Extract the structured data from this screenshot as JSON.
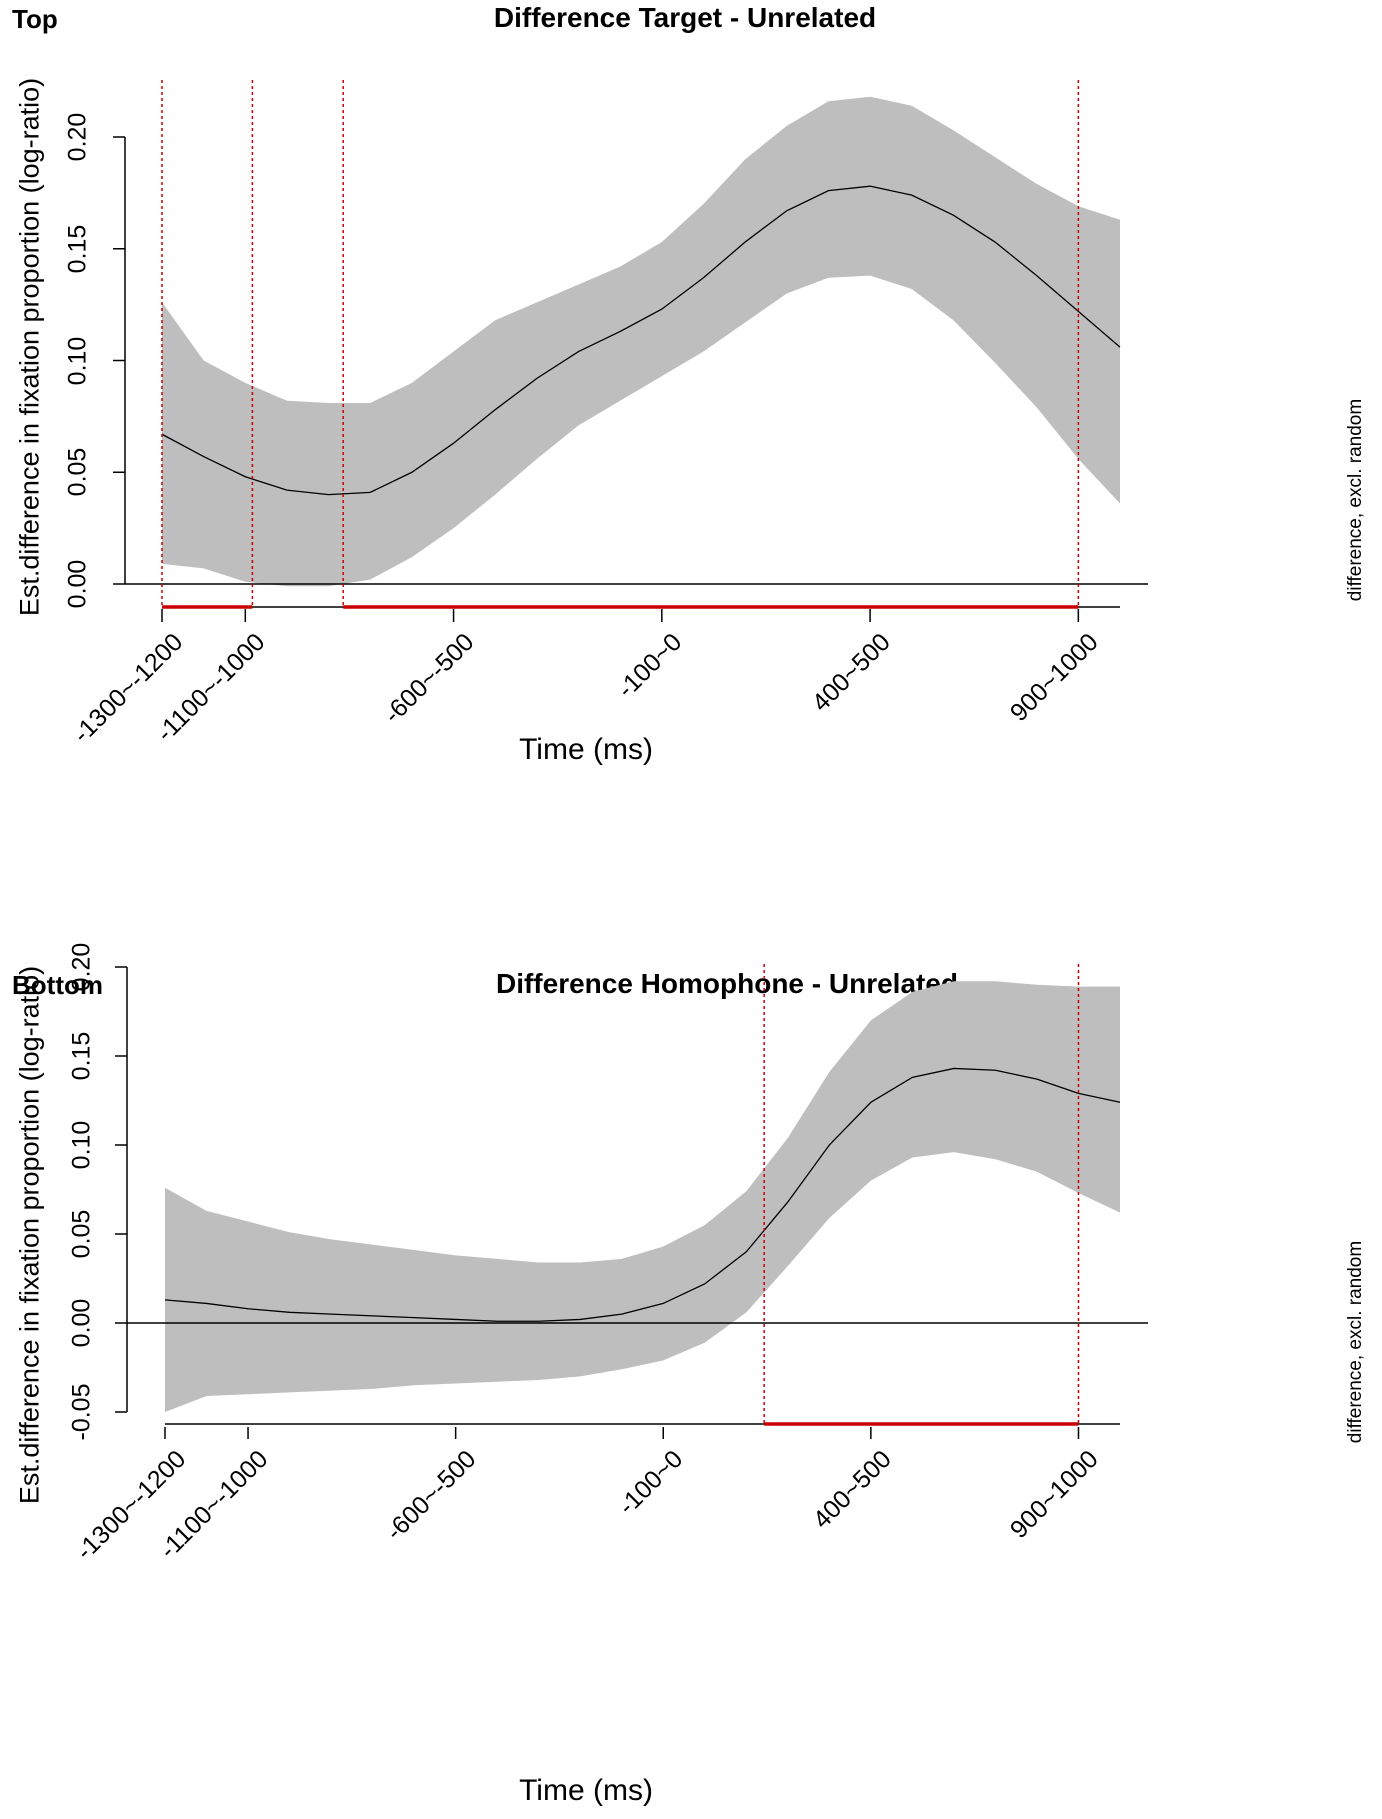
{
  "chart_data": [
    {
      "type": "line",
      "panel_label": "Top",
      "title": "Difference Target - Unrelated",
      "xlabel": "Time (ms)",
      "ylabel": "Est.difference in fixation proportion (log-ratio)",
      "side_label": "difference, excl. random",
      "xlim": [
        -1300,
        1000
      ],
      "ylim": [
        0,
        0.2
      ],
      "x_tick_positions": [
        -1300,
        -1100,
        -600,
        -100,
        400,
        900
      ],
      "x_tick_labels": [
        "-1300~-1200",
        "-1100~-1000",
        "-600~-500",
        "-100~0",
        "400~500",
        "900~1000"
      ],
      "y_ticks": [
        0,
        0.05,
        0.1,
        0.15,
        0.2
      ],
      "y_tick_labels": [
        "0.00",
        "0.05",
        "0.10",
        "0.15",
        "0.20"
      ],
      "reference_line": 0,
      "x": [
        -1300,
        -1200,
        -1100,
        -1000,
        -900,
        -800,
        -700,
        -600,
        -500,
        -400,
        -300,
        -200,
        -100,
        0,
        100,
        200,
        300,
        400,
        500,
        600,
        700,
        800,
        900,
        1000
      ],
      "series": [
        {
          "name": "estimate",
          "values": [
            0.067,
            0.057,
            0.048,
            0.042,
            0.04,
            0.041,
            0.05,
            0.063,
            0.078,
            0.092,
            0.104,
            0.113,
            0.123,
            0.137,
            0.153,
            0.167,
            0.176,
            0.178,
            0.174,
            0.165,
            0.153,
            0.138,
            0.122,
            0.106
          ]
        },
        {
          "name": "ci_upper",
          "values": [
            0.126,
            0.1,
            0.09,
            0.082,
            0.081,
            0.081,
            0.09,
            0.104,
            0.118,
            0.126,
            0.134,
            0.142,
            0.153,
            0.17,
            0.19,
            0.205,
            0.216,
            0.218,
            0.214,
            0.203,
            0.191,
            0.179,
            0.169,
            0.163
          ]
        },
        {
          "name": "ci_lower",
          "values": [
            0.009,
            0.007,
            0.001,
            -0.001,
            -0.001,
            0.002,
            0.012,
            0.025,
            0.04,
            0.056,
            0.071,
            0.082,
            0.093,
            0.104,
            0.117,
            0.13,
            0.137,
            0.138,
            0.132,
            0.118,
            0.099,
            0.079,
            0.056,
            0.036
          ]
        }
      ],
      "significance_markers": [
        -1300,
        -1083,
        -865,
        900
      ],
      "significant_intervals": [
        [
          -1300,
          -1083
        ],
        [
          -865,
          900
        ]
      ]
    },
    {
      "type": "line",
      "panel_label": "Bottom",
      "title": "Difference Homophone - Unrelated",
      "xlabel": "Time (ms)",
      "ylabel": "Est.difference in fixation proportion (log-ratio)",
      "side_label": "difference, excl. random",
      "xlim": [
        -1300,
        1000
      ],
      "ylim": [
        -0.05,
        0.2
      ],
      "x_tick_positions": [
        -1300,
        -1100,
        -600,
        -100,
        400,
        900
      ],
      "x_tick_labels": [
        "-1300~-1200",
        "-1100~-1000",
        "-600~-500",
        "-100~0",
        "400~500",
        "900~1000"
      ],
      "y_ticks": [
        -0.05,
        0,
        0.05,
        0.1,
        0.15,
        0.2
      ],
      "y_tick_labels": [
        "-0.05",
        "0.00",
        "0.05",
        "0.10",
        "0.15",
        "0.20"
      ],
      "reference_line": 0,
      "x": [
        -1300,
        -1200,
        -1100,
        -1000,
        -900,
        -800,
        -700,
        -600,
        -500,
        -400,
        -300,
        -200,
        -100,
        0,
        100,
        200,
        300,
        400,
        500,
        600,
        700,
        800,
        900,
        1000
      ],
      "series": [
        {
          "name": "estimate",
          "values": [
            0.013,
            0.011,
            0.008,
            0.006,
            0.005,
            0.004,
            0.003,
            0.002,
            0.001,
            0.001,
            0.002,
            0.005,
            0.011,
            0.022,
            0.04,
            0.068,
            0.1,
            0.124,
            0.138,
            0.143,
            0.142,
            0.137,
            0.129,
            0.124
          ]
        },
        {
          "name": "ci_upper",
          "values": [
            0.076,
            0.063,
            0.057,
            0.051,
            0.047,
            0.044,
            0.041,
            0.038,
            0.036,
            0.034,
            0.034,
            0.036,
            0.043,
            0.055,
            0.074,
            0.104,
            0.141,
            0.17,
            0.186,
            0.192,
            0.192,
            0.19,
            0.189,
            0.189
          ]
        },
        {
          "name": "ci_lower",
          "values": [
            -0.05,
            -0.041,
            -0.04,
            -0.039,
            -0.038,
            -0.037,
            -0.035,
            -0.034,
            -0.033,
            -0.032,
            -0.03,
            -0.026,
            -0.021,
            -0.011,
            0.006,
            0.032,
            0.059,
            0.08,
            0.093,
            0.096,
            0.092,
            0.085,
            0.073,
            0.062
          ]
        }
      ],
      "significance_markers": [
        143,
        900
      ],
      "significant_intervals": [
        [
          143,
          900
        ]
      ]
    }
  ]
}
